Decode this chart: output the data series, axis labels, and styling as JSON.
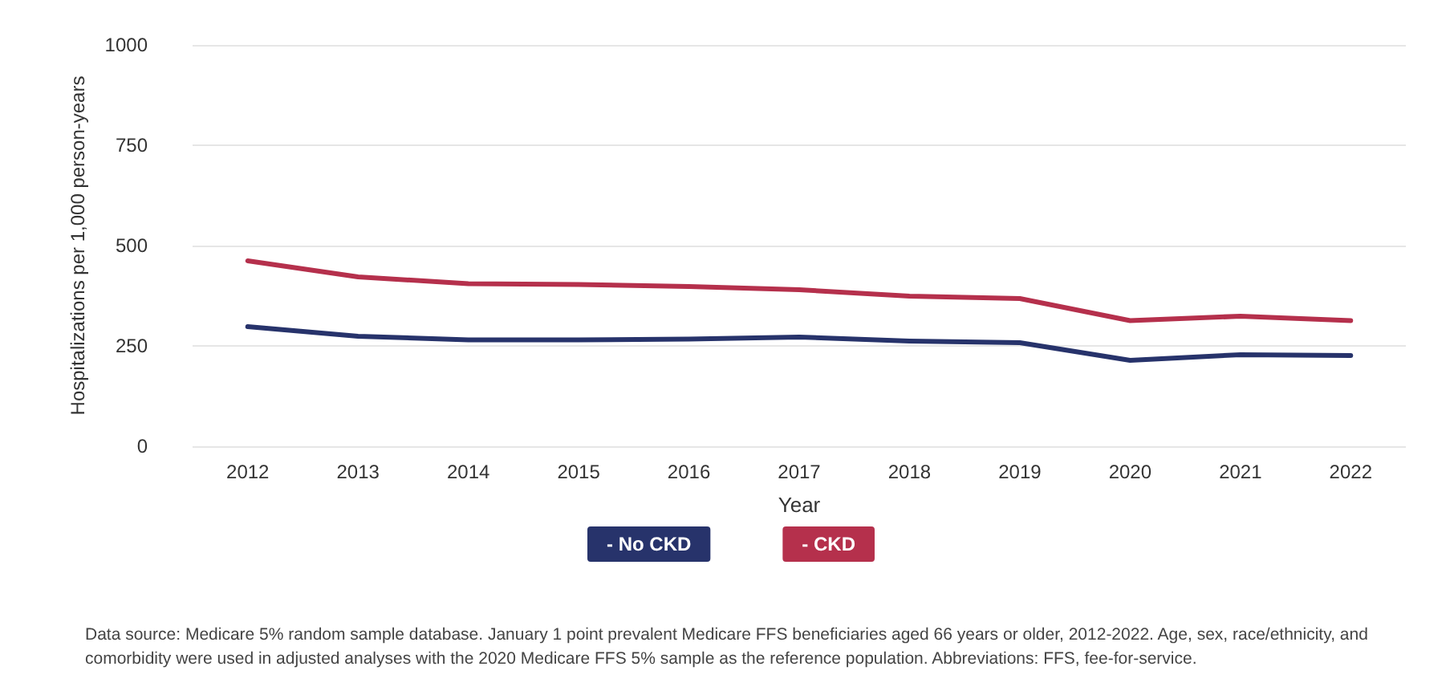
{
  "chart_data": {
    "type": "line",
    "xlabel": "Year",
    "ylabel": "Hospitalizations per 1,000 person-years",
    "categories": [
      "2012",
      "2013",
      "2014",
      "2015",
      "2016",
      "2017",
      "2018",
      "2019",
      "2020",
      "2021",
      "2022"
    ],
    "series": [
      {
        "name": "- No CKD",
        "color": "#27336b",
        "values": [
          298,
          274,
          265,
          265,
          267,
          272,
          262,
          258,
          214,
          228,
          226
        ]
      },
      {
        "name": "- CKD",
        "color": "#b5304c",
        "values": [
          462,
          422,
          405,
          403,
          398,
          390,
          374,
          368,
          313,
          324,
          313
        ]
      }
    ],
    "ylim": [
      0,
      1000
    ],
    "yticks": [
      0,
      250,
      500,
      750,
      1000
    ],
    "grid": "y",
    "legend": "bottom",
    "marker": "none",
    "line_style": "solid",
    "annotations": [
      "Data source: Medicare 5% random sample database. January 1 point prevalent Medicare FFS beneficiaries aged 66 years or older, 2012-2022. Age, sex, race/ethnicity, and comorbidity were used in adjusted analyses with the 2020 Medicare FFS 5% sample as the reference population. Abbreviations: FFS, fee-for-service."
    ]
  }
}
